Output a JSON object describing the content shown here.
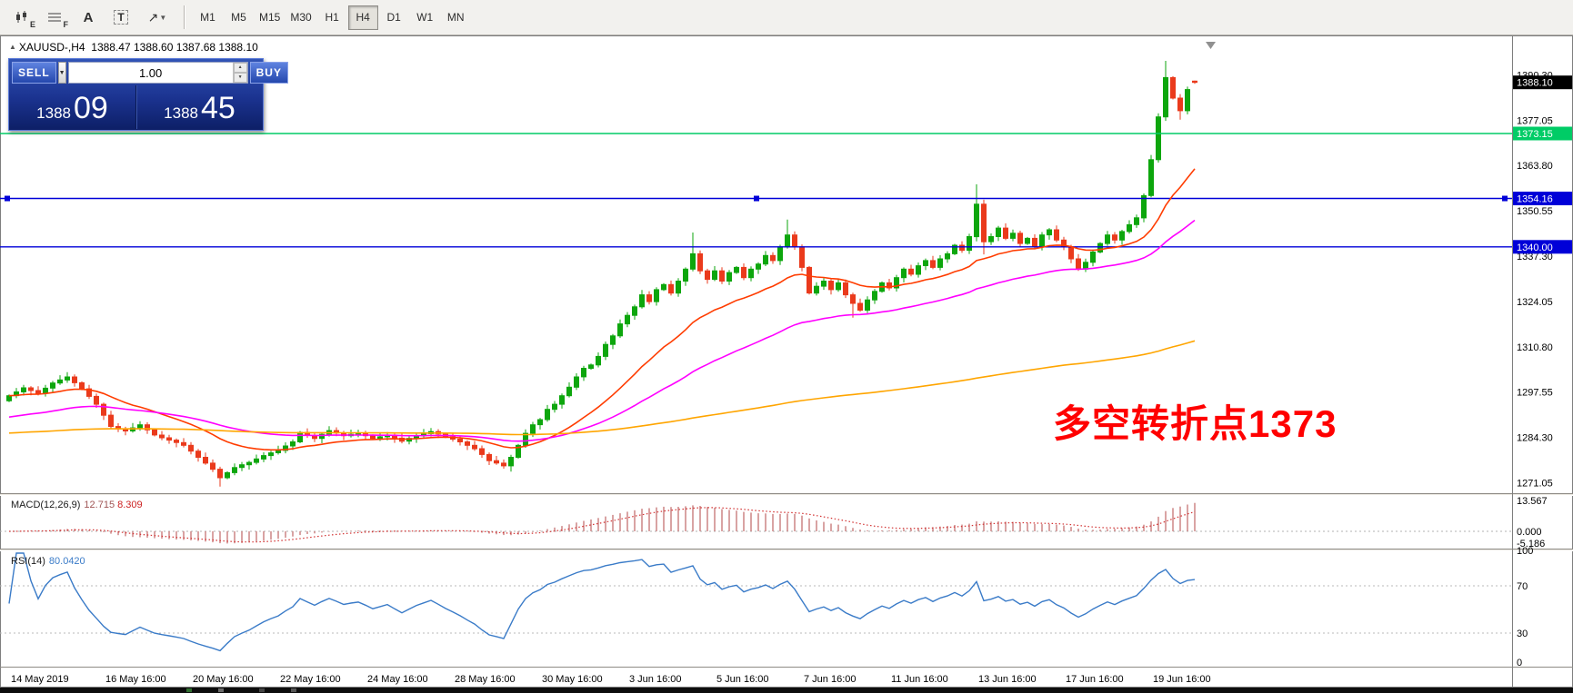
{
  "window": {
    "symbol_tf": "XAUUSD-,H4",
    "ohlc": "1388.47 1388.60 1387.68 1388.10",
    "collapse_arrow": "▲"
  },
  "toolbar": {
    "tools": [
      {
        "id": "chart-expert",
        "label": "E"
      },
      {
        "id": "fibonacci",
        "label": "F"
      },
      {
        "id": "text-label",
        "label": "A"
      },
      {
        "id": "text-box",
        "label": "T"
      },
      {
        "id": "arrows",
        "label": "↗"
      }
    ],
    "timeframes": [
      {
        "label": "M1",
        "active": false
      },
      {
        "label": "M5",
        "active": false
      },
      {
        "label": "M15",
        "active": false
      },
      {
        "label": "M30",
        "active": false
      },
      {
        "label": "H1",
        "active": false
      },
      {
        "label": "H4",
        "active": true
      },
      {
        "label": "D1",
        "active": false
      },
      {
        "label": "W1",
        "active": false
      },
      {
        "label": "MN",
        "active": false
      }
    ]
  },
  "trade_panel": {
    "sell_label": "SELL",
    "buy_label": "BUY",
    "volume": "1.00",
    "sell_price_small": "1388",
    "sell_price_big": "09",
    "buy_price_small": "1388",
    "buy_price_big": "45"
  },
  "annotation": {
    "text": "多空转折点1373",
    "color": "#ff0000"
  },
  "macd": {
    "label": "MACD(12,26,9)",
    "value_main": "12.715",
    "value_signal": "8.309",
    "scale_labels": [
      "13.567",
      "0.000",
      "-5.186"
    ],
    "fast": 12,
    "slow": 26,
    "signal": 9
  },
  "rsi": {
    "label": "RSI(14)",
    "value": "80.0420",
    "period": 14,
    "levels": [
      100,
      70,
      30,
      0
    ]
  },
  "axis": {
    "current_price": "1388.10",
    "price_ticks": [
      "1390.30",
      "1377.05",
      "1363.80",
      "1350.55",
      "1337.30",
      "1324.05",
      "1310.80",
      "1297.55",
      "1284.30",
      "1271.05"
    ],
    "date_ticks": [
      {
        "label": "14 May 2019",
        "i": 0
      },
      {
        "label": "16 May 16:00",
        "i": 13
      },
      {
        "label": "20 May 16:00",
        "i": 25
      },
      {
        "label": "22 May 16:00",
        "i": 37
      },
      {
        "label": "24 May 16:00",
        "i": 49
      },
      {
        "label": "28 May 16:00",
        "i": 61
      },
      {
        "label": "30 May 16:00",
        "i": 73
      },
      {
        "label": "3 Jun 16:00",
        "i": 85
      },
      {
        "label": "5 Jun 16:00",
        "i": 97
      },
      {
        "label": "7 Jun 16:00",
        "i": 109
      },
      {
        "label": "11 Jun 16:00",
        "i": 121
      },
      {
        "label": "13 Jun 16:00",
        "i": 133
      },
      {
        "label": "17 Jun 16:00",
        "i": 145
      },
      {
        "label": "19 Jun 16:00",
        "i": 157
      }
    ]
  },
  "hlines": [
    {
      "price": 1373.15,
      "label": "1373.15",
      "color": "#00cc66",
      "selected": false
    },
    {
      "price": 1354.16,
      "label": "1354.16",
      "color": "#0000d8",
      "selected": true
    },
    {
      "price": 1340.0,
      "label": "1340.00",
      "color": "#0000d8",
      "selected": false
    }
  ],
  "colors": {
    "candle_up": "#0da60d",
    "candle_down": "#ea3a1c",
    "macd_hist": "#c97c7c",
    "macd_signal": "#d23333",
    "rsi_line": "#3a7bc8",
    "current_badge_bg": "#000000"
  },
  "chart_data": {
    "type": "candlestick",
    "symbol": "XAUUSD-",
    "timeframe": "H4",
    "title": "XAUUSD-,H4 1388.47 1388.60 1387.68 1388.10",
    "ylim": [
      1268.0,
      1400.5
    ],
    "first_open": 1295.0,
    "closes": [
      1296.5,
      1297.6,
      1298.8,
      1298.0,
      1297.2,
      1298.7,
      1300.2,
      1301.1,
      1302.0,
      1300.3,
      1298.5,
      1296.3,
      1294.0,
      1290.8,
      1287.5,
      1286.8,
      1286.2,
      1287.1,
      1288.0,
      1286.5,
      1285.0,
      1284.2,
      1283.5,
      1282.8,
      1282.0,
      1280.3,
      1278.5,
      1276.8,
      1275.0,
      1272.5,
      1274.0,
      1275.5,
      1276.3,
      1277.0,
      1278.0,
      1279.0,
      1279.8,
      1280.5,
      1281.8,
      1283.0,
      1285.8,
      1284.9,
      1284.0,
      1285.2,
      1286.3,
      1285.6,
      1284.8,
      1285.2,
      1285.5,
      1284.8,
      1284.0,
      1284.5,
      1285.0,
      1284.1,
      1283.2,
      1284.0,
      1284.8,
      1285.4,
      1286.0,
      1285.3,
      1284.5,
      1283.8,
      1283.0,
      1282.0,
      1281.0,
      1279.3,
      1277.5,
      1276.8,
      1276.0,
      1278.5,
      1282.0,
      1285.5,
      1288.0,
      1289.5,
      1292.5,
      1294.0,
      1296.5,
      1299.0,
      1302.0,
      1304.5,
      1305.5,
      1308.0,
      1311.5,
      1314.0,
      1317.5,
      1320.0,
      1322.5,
      1326.0,
      1324.0,
      1327.5,
      1329.0,
      1326.5,
      1330.0,
      1333.5,
      1338.0,
      1333.0,
      1330.5,
      1333.0,
      1330.0,
      1332.5,
      1334.0,
      1331.0,
      1333.5,
      1335.0,
      1337.5,
      1336.0,
      1340.0,
      1343.5,
      1340.0,
      1334.0,
      1326.5,
      1328.5,
      1330.0,
      1327.5,
      1329.5,
      1326.0,
      1323.5,
      1321.5,
      1324.5,
      1327.0,
      1329.5,
      1328.0,
      1331.0,
      1333.5,
      1332.0,
      1334.5,
      1336.0,
      1334.0,
      1336.5,
      1338.0,
      1340.5,
      1339.0,
      1343.0,
      1352.5,
      1341.5,
      1343.0,
      1345.5,
      1342.5,
      1344.0,
      1341.0,
      1342.5,
      1340.0,
      1343.5,
      1345.0,
      1342.0,
      1340.0,
      1336.5,
      1333.5,
      1335.5,
      1338.5,
      1341.0,
      1343.5,
      1342.0,
      1344.5,
      1346.5,
      1348.5,
      1355.0,
      1365.5,
      1378.0,
      1389.5,
      1383.5,
      1379.8,
      1386.0,
      1388.1
    ],
    "wick_overrides": {
      "8": {
        "h": 1303.4
      },
      "29": {
        "l": 1269.9
      },
      "69": {
        "l": 1274.3
      },
      "94": {
        "h": 1344.2
      },
      "107": {
        "h": 1348.0
      },
      "116": {
        "l": 1319.3
      },
      "133": {
        "h": 1358.3
      },
      "134": {
        "l": 1337.8
      },
      "159": {
        "h": 1394.4
      },
      "161": {
        "l": 1377.2
      },
      "163": {
        "o": 1388.47,
        "h": 1388.6,
        "l": 1387.68,
        "c": 1388.1
      }
    },
    "ma_lines": [
      {
        "name": "fast-red",
        "color": "#ff3c00",
        "alpha": 0.0952,
        "seed": 1296.5
      },
      {
        "name": "mid-magenta",
        "color": "#ff00ff",
        "alpha": 0.0392,
        "seed": 1290.0
      },
      {
        "name": "slow-orange",
        "color": "#ffa500",
        "alpha": 0.008,
        "seed": 1285.5
      }
    ]
  }
}
